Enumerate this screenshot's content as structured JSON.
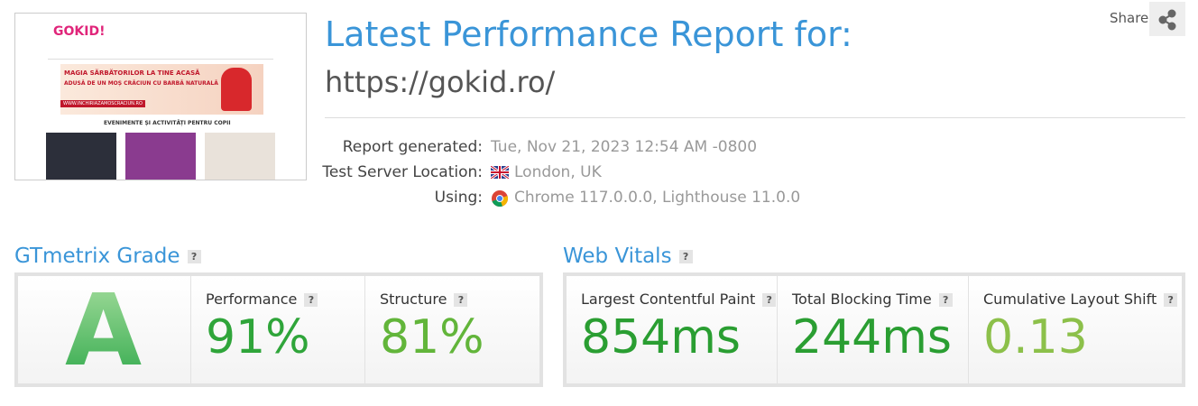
{
  "share": "Share",
  "header": {
    "title": "Latest Performance Report for:",
    "url": "https://gokid.ro/"
  },
  "thumbnail": {
    "logo": "GOKID!",
    "banner_line1": "MAGIA SĂRBĂTORILOR LA TINE ACASĂ",
    "banner_line2": "ADUSĂ DE UN MOȘ CRĂCIUN CU BARBĂ NATURALĂ",
    "banner_link": "WWW.INCHIRIAZAMOSCRACIUN.RO",
    "section": "EVENIMENTE ȘI ACTIVITĂȚI PENTRU COPII"
  },
  "meta": [
    {
      "label": "Report generated:",
      "value": "Tue, Nov 21, 2023 12:54 AM -0800"
    },
    {
      "label": "Test Server Location:",
      "value": "London, UK"
    },
    {
      "label": "Using:",
      "value": "Chrome 117.0.0.0, Lighthouse 11.0.0"
    }
  ],
  "help": "?",
  "grade": {
    "title": "GTmetrix Grade",
    "grade": "A",
    "metrics": [
      {
        "label": "Performance",
        "value": "91%"
      },
      {
        "label": "Structure",
        "value": "81%"
      }
    ]
  },
  "vitals": {
    "title": "Web Vitals",
    "metrics": [
      {
        "label": "Largest Contentful Paint",
        "value": "854ms"
      },
      {
        "label": "Total Blocking Time",
        "value": "244ms"
      },
      {
        "label": "Cumulative Layout Shift",
        "value": "0.13"
      }
    ]
  }
}
